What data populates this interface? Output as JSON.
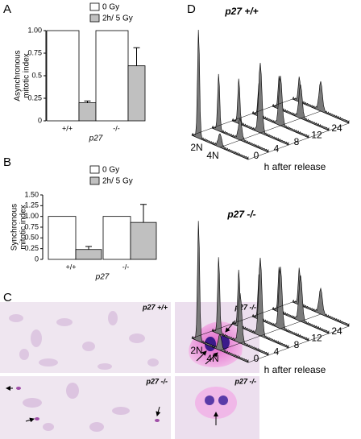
{
  "chart_data": [
    {
      "type": "bar",
      "panel": "A",
      "ylabel": [
        "Asynchronous",
        "mitotic index"
      ],
      "xlabel": "p27",
      "categories": [
        "+/+",
        "-/-"
      ],
      "series": [
        {
          "name": "0 Gy",
          "color": "#ffffff",
          "values": [
            1.0,
            1.0
          ]
        },
        {
          "name": "2h/ 5 Gy",
          "color": "#c0c0c0",
          "values": [
            0.2,
            0.61
          ],
          "errors": [
            0.02,
            0.2
          ]
        }
      ],
      "ylim": [
        0,
        1
      ],
      "yticks": [
        0,
        0.25,
        0.5,
        0.75,
        {
          "value": 1,
          "label": "1.00"
        }
      ]
    },
    {
      "type": "bar",
      "panel": "B",
      "ylabel": [
        "Synchronous",
        "mitotic index"
      ],
      "xlabel": "p27",
      "categories": [
        "+/+",
        "-/-"
      ],
      "series": [
        {
          "name": "0 Gy",
          "color": "#ffffff",
          "values": [
            1.0,
            1.0
          ]
        },
        {
          "name": "2h/ 5 Gy",
          "color": "#c0c0c0",
          "values": [
            0.23,
            0.86
          ],
          "errors": [
            0.07,
            0.42
          ]
        }
      ],
      "ylim": [
        0,
        1.5
      ],
      "yticks": [
        0,
        0.25,
        {
          "value": 0.5,
          "label": "0.50"
        },
        0.75,
        {
          "value": 1,
          "label": "1.00"
        },
        1.25,
        {
          "value": 1.5,
          "label": "1.50"
        }
      ]
    }
  ],
  "panel_c": {
    "label": "C",
    "images": [
      {
        "label": "p27 +/+"
      },
      {
        "label": "p27 -/-"
      },
      {
        "label": "p27 -/-"
      },
      {
        "label": "p27 -/-"
      }
    ]
  },
  "panel_d": {
    "label": "D",
    "plots": [
      {
        "title": "p27 +/+",
        "dna_labels": [
          "2N",
          "4N"
        ],
        "time_ticks": [
          0,
          4,
          8,
          12,
          24
        ],
        "time_label": "h after release"
      },
      {
        "title": "p27 -/-",
        "dna_labels": [
          "2N",
          "4N"
        ],
        "time_ticks": [
          0,
          4,
          8,
          12,
          24
        ],
        "time_label": "h after release"
      }
    ]
  }
}
